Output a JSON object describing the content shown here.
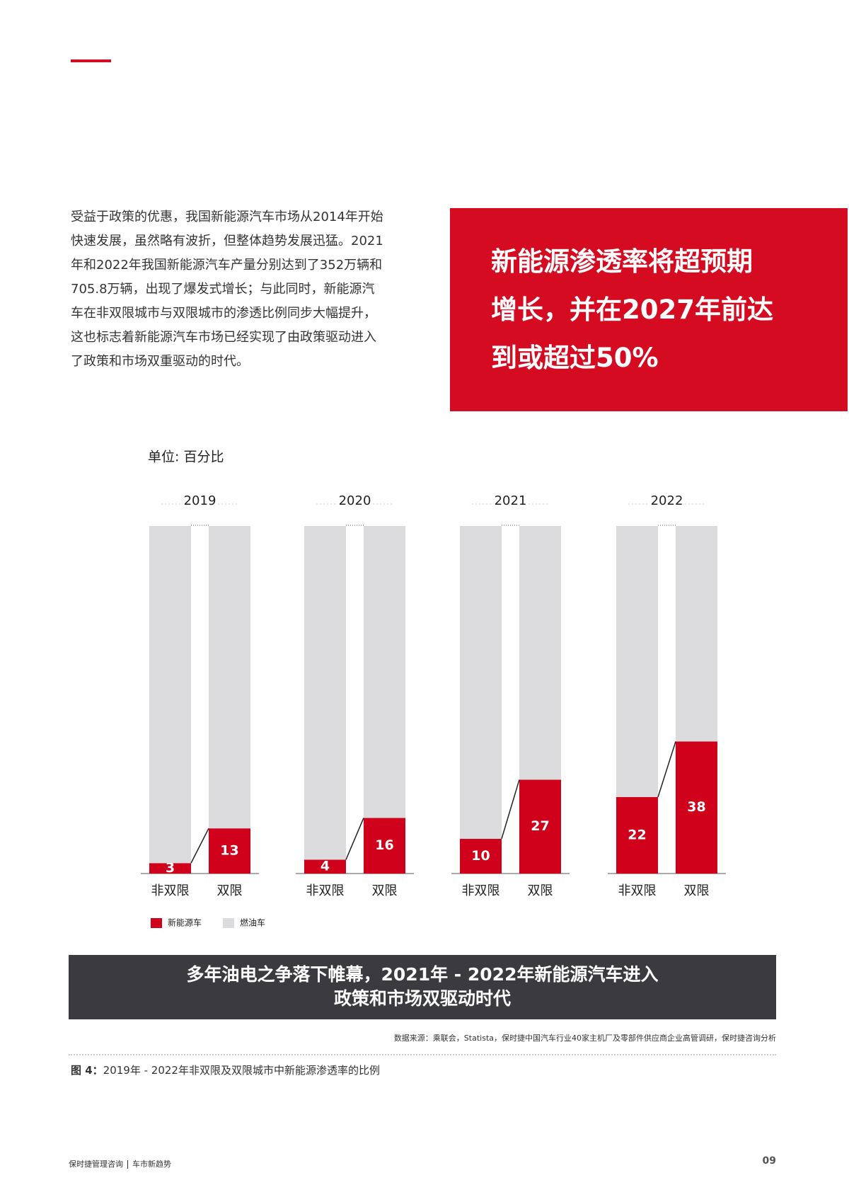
{
  "header": {
    "lines": [
      "受益于政策的优惠，我国新能源汽车市场从2014年开始",
      "快速发展，虽然略有波折，但整体趋势发展迅猛。2021",
      "年和2022年我国新能源汽车产量分别达到了352万辆和",
      "705.8万辆，出现了爆发式增长；与此同时，新能源汽",
      "车在非双限城市与双限城市的渗透比例同步大幅提升，",
      "这也标志着新能源汽车市场已经实现了由政策驱动进入",
      "了政策和市场双重驱动的时代。"
    ]
  },
  "callout": {
    "lines": [
      "新能源渗透率将超预期",
      "增长，并在2027年前达",
      "到或超过50%"
    ]
  },
  "chart_data": {
    "type": "bar",
    "stacked": true,
    "unit_label": "单位: 百分比",
    "groups": [
      "2019",
      "2020",
      "2021",
      "2022"
    ],
    "categories": [
      "非双限",
      "双限",
      "非双限",
      "双限",
      "非双限",
      "双限",
      "非双限",
      "双限"
    ],
    "series": [
      {
        "name": "新能源车",
        "color": "#d0021b",
        "values": [
          3,
          13,
          4,
          16,
          10,
          27,
          22,
          38
        ]
      },
      {
        "name": "燃油车",
        "color": "#dcdcde",
        "values": [
          97,
          87,
          96,
          84,
          90,
          73,
          78,
          62
        ]
      }
    ],
    "ylim": [
      0,
      100
    ],
    "legend": "bottom-left"
  },
  "banner": {
    "lines": [
      "多年油电之争落下帷幕，2021年 - 2022年新能源汽车进入",
      "政策和市场双驱动时代"
    ]
  },
  "source": "数据来源：乘联会，Statista，保时捷中国汽车行业40家主机厂及零部件供应商企业高管调研，保时捷咨询分析",
  "caption": {
    "label": "图 4：",
    "text": "2019年 - 2022年非双限及双限城市中新能源渗透率的比例"
  },
  "footer": {
    "brand": "保时捷管理咨询",
    "section": "车市新趋势",
    "page": "09"
  }
}
